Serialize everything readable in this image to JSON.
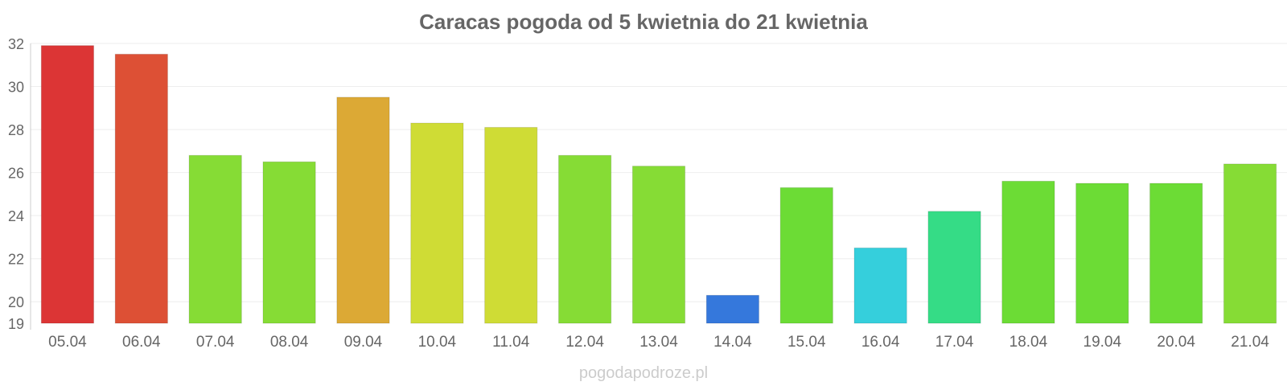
{
  "chart_data": {
    "type": "bar",
    "title": "Caracas pogoda od 5 kwietnia do 21 kwietnia",
    "xlabel": "",
    "ylabel": "",
    "ylim": [
      19,
      32
    ],
    "yticks": [
      19,
      20,
      22,
      24,
      26,
      28,
      30,
      32
    ],
    "grid": true,
    "categories": [
      "05.04",
      "06.04",
      "07.04",
      "08.04",
      "09.04",
      "10.04",
      "11.04",
      "12.04",
      "13.04",
      "14.04",
      "15.04",
      "16.04",
      "17.04",
      "18.04",
      "19.04",
      "20.04",
      "21.04"
    ],
    "values": [
      31.9,
      31.5,
      26.8,
      26.5,
      29.5,
      28.3,
      28.1,
      26.8,
      26.3,
      20.3,
      25.3,
      22.5,
      24.2,
      25.6,
      25.5,
      25.5,
      26.4
    ],
    "colors": [
      "#dc3535",
      "#dd5035",
      "#86dc35",
      "#86dc35",
      "#dca935",
      "#cfdc35",
      "#cfdc35",
      "#86dc35",
      "#86dc35",
      "#3578dc",
      "#6cdc35",
      "#35cfdc",
      "#35dc86",
      "#6cdc35",
      "#6cdc35",
      "#6cdc35",
      "#86dc35"
    ]
  },
  "watermark": "pogodapodroze.pl"
}
